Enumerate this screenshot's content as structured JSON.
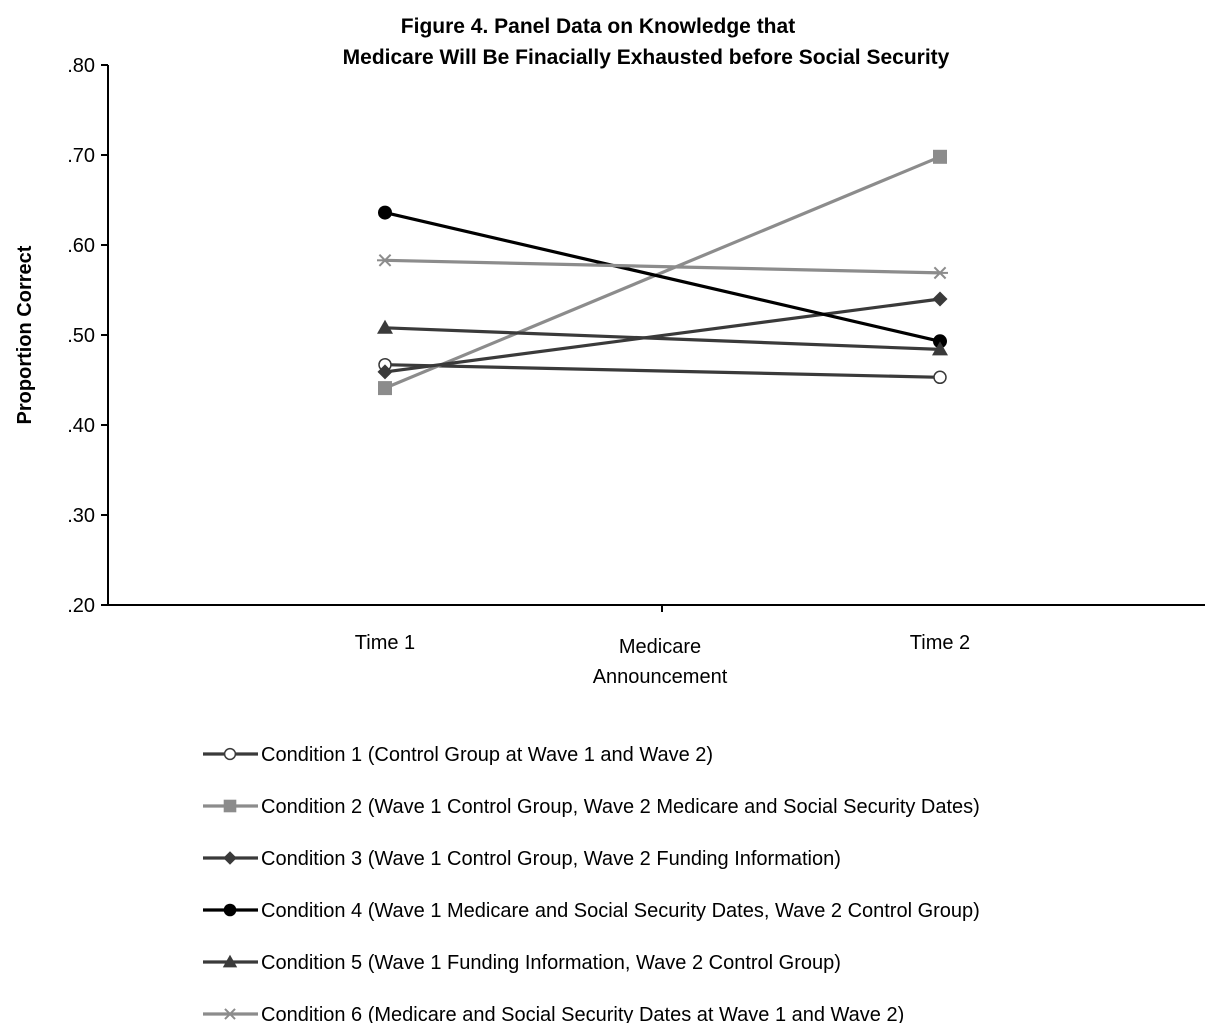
{
  "chart_data": {
    "type": "line",
    "title": "Figure 4. Panel Data on Knowledge that",
    "subtitle": "Medicare Will Be Finacially Exhausted before Social Security",
    "ylabel": "Proportion Correct",
    "ylim": [
      0.2,
      0.8
    ],
    "yticks": [
      {
        "value": 0.8,
        "label": ".80"
      },
      {
        "value": 0.7,
        "label": ".70"
      },
      {
        "value": 0.6,
        "label": ".60"
      },
      {
        "value": 0.5,
        "label": ".50"
      },
      {
        "value": 0.4,
        "label": ".40"
      },
      {
        "value": 0.3,
        "label": ".30"
      },
      {
        "value": 0.2,
        "label": ".20"
      }
    ],
    "categories": [
      "Time 1",
      "Time 2"
    ],
    "middle_label": [
      "Medicare",
      "Announcement"
    ],
    "legend_position": "bottom",
    "series": [
      {
        "name": "Condition 1 (Control Group at Wave 1 and Wave 2)",
        "values": [
          0.467,
          0.453
        ],
        "color": "#3a3a3a",
        "marker": "open-circle"
      },
      {
        "name": "Condition 2 (Wave 1 Control Group, Wave 2 Medicare and Social Security Dates)",
        "values": [
          0.441,
          0.698
        ],
        "color": "#8c8c8c",
        "marker": "square"
      },
      {
        "name": "Condition 3 (Wave 1 Control Group, Wave 2 Funding Information)",
        "values": [
          0.459,
          0.54
        ],
        "color": "#3a3a3a",
        "marker": "diamond"
      },
      {
        "name": "Condition 4 (Wave 1 Medicare and Social Security Dates, Wave 2 Control Group)",
        "values": [
          0.636,
          0.493
        ],
        "color": "#000000",
        "marker": "filled-circle"
      },
      {
        "name": "Condition 5 (Wave 1 Funding Information, Wave 2 Control Group)",
        "values": [
          0.508,
          0.484
        ],
        "color": "#3a3a3a",
        "marker": "triangle"
      },
      {
        "name": "Condition 6 (Medicare and Social Security Dates at Wave 1 and Wave 2)",
        "values": [
          0.583,
          0.569
        ],
        "color": "#8c8c8c",
        "marker": "asterisk"
      }
    ]
  }
}
